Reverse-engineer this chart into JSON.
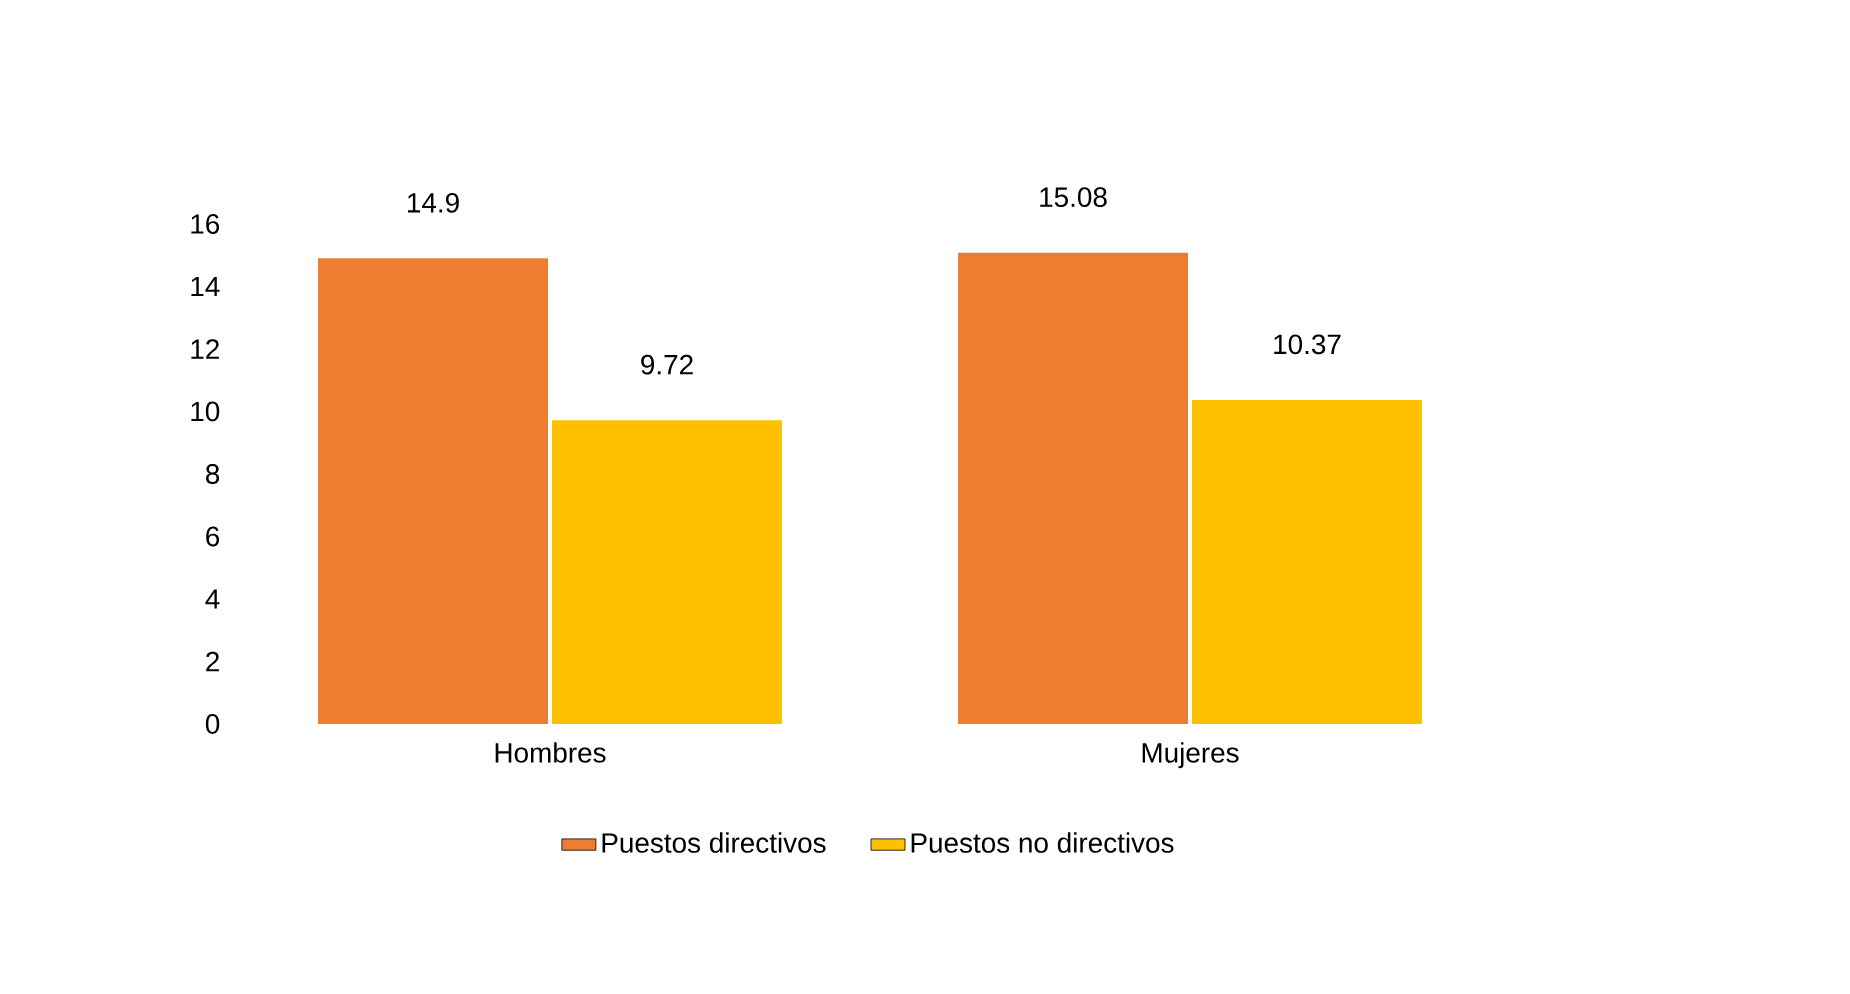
{
  "chart_data": {
    "type": "bar",
    "categories": [
      "Hombres",
      "Mujeres"
    ],
    "series": [
      {
        "name": "Puestos directivos",
        "color": "#ed7d31",
        "values": [
          14.9,
          15.08
        ]
      },
      {
        "name": "Puestos no directivos",
        "color": "#ffc000",
        "values": [
          9.72,
          10.37
        ]
      }
    ],
    "ylim": [
      0,
      16
    ],
    "yticks": [
      0,
      2,
      4,
      6,
      8,
      10,
      12,
      14,
      16
    ],
    "data_labels": true,
    "legend": "bottom"
  }
}
